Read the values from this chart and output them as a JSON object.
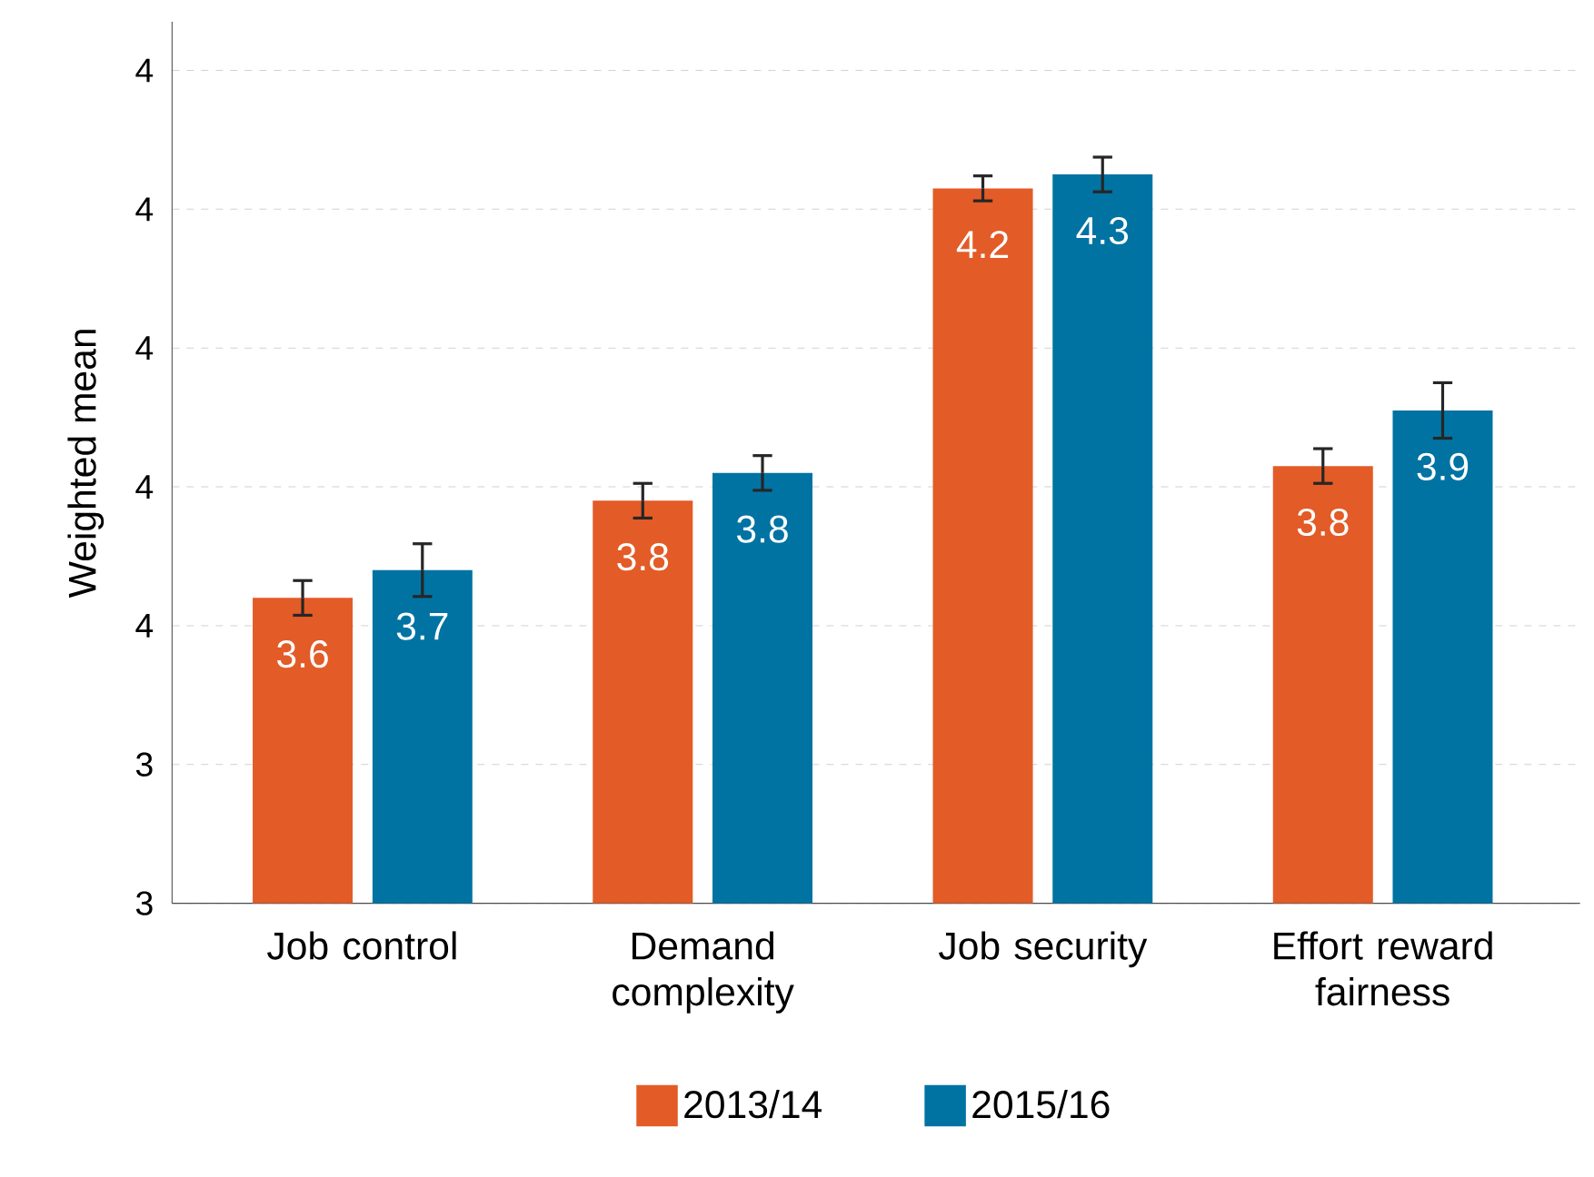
{
  "chart_data": {
    "type": "bar",
    "ylabel": "Weighted mean",
    "categories": [
      "Job control",
      "Demand complexity",
      "Job security",
      "Effort reward fairness"
    ],
    "series": [
      {
        "name": "2013/14",
        "color": "#e35b27",
        "values": [
          3.64,
          3.78,
          4.23,
          3.83
        ],
        "errors": [
          0.025,
          0.025,
          0.018,
          0.025
        ],
        "value_labels": [
          "3.6",
          "3.8",
          "4.2",
          "3.8"
        ]
      },
      {
        "name": "2015/16",
        "color": "#0073a3",
        "values": [
          3.68,
          3.82,
          4.25,
          3.91
        ],
        "errors": [
          0.038,
          0.025,
          0.025,
          0.04
        ],
        "value_labels": [
          "3.7",
          "3.8",
          "4.3",
          "3.9"
        ]
      }
    ],
    "ylim": [
      3.2,
      4.47
    ],
    "yticks": [
      {
        "value": 3.2,
        "label": "3"
      },
      {
        "value": 3.4,
        "label": "3"
      },
      {
        "value": 3.6,
        "label": "4"
      },
      {
        "value": 3.8,
        "label": "4"
      },
      {
        "value": 4.0,
        "label": "4"
      },
      {
        "value": 4.2,
        "label": "4"
      },
      {
        "value": 4.4,
        "label": "4"
      }
    ],
    "grid": "y",
    "legend": "bottom"
  }
}
